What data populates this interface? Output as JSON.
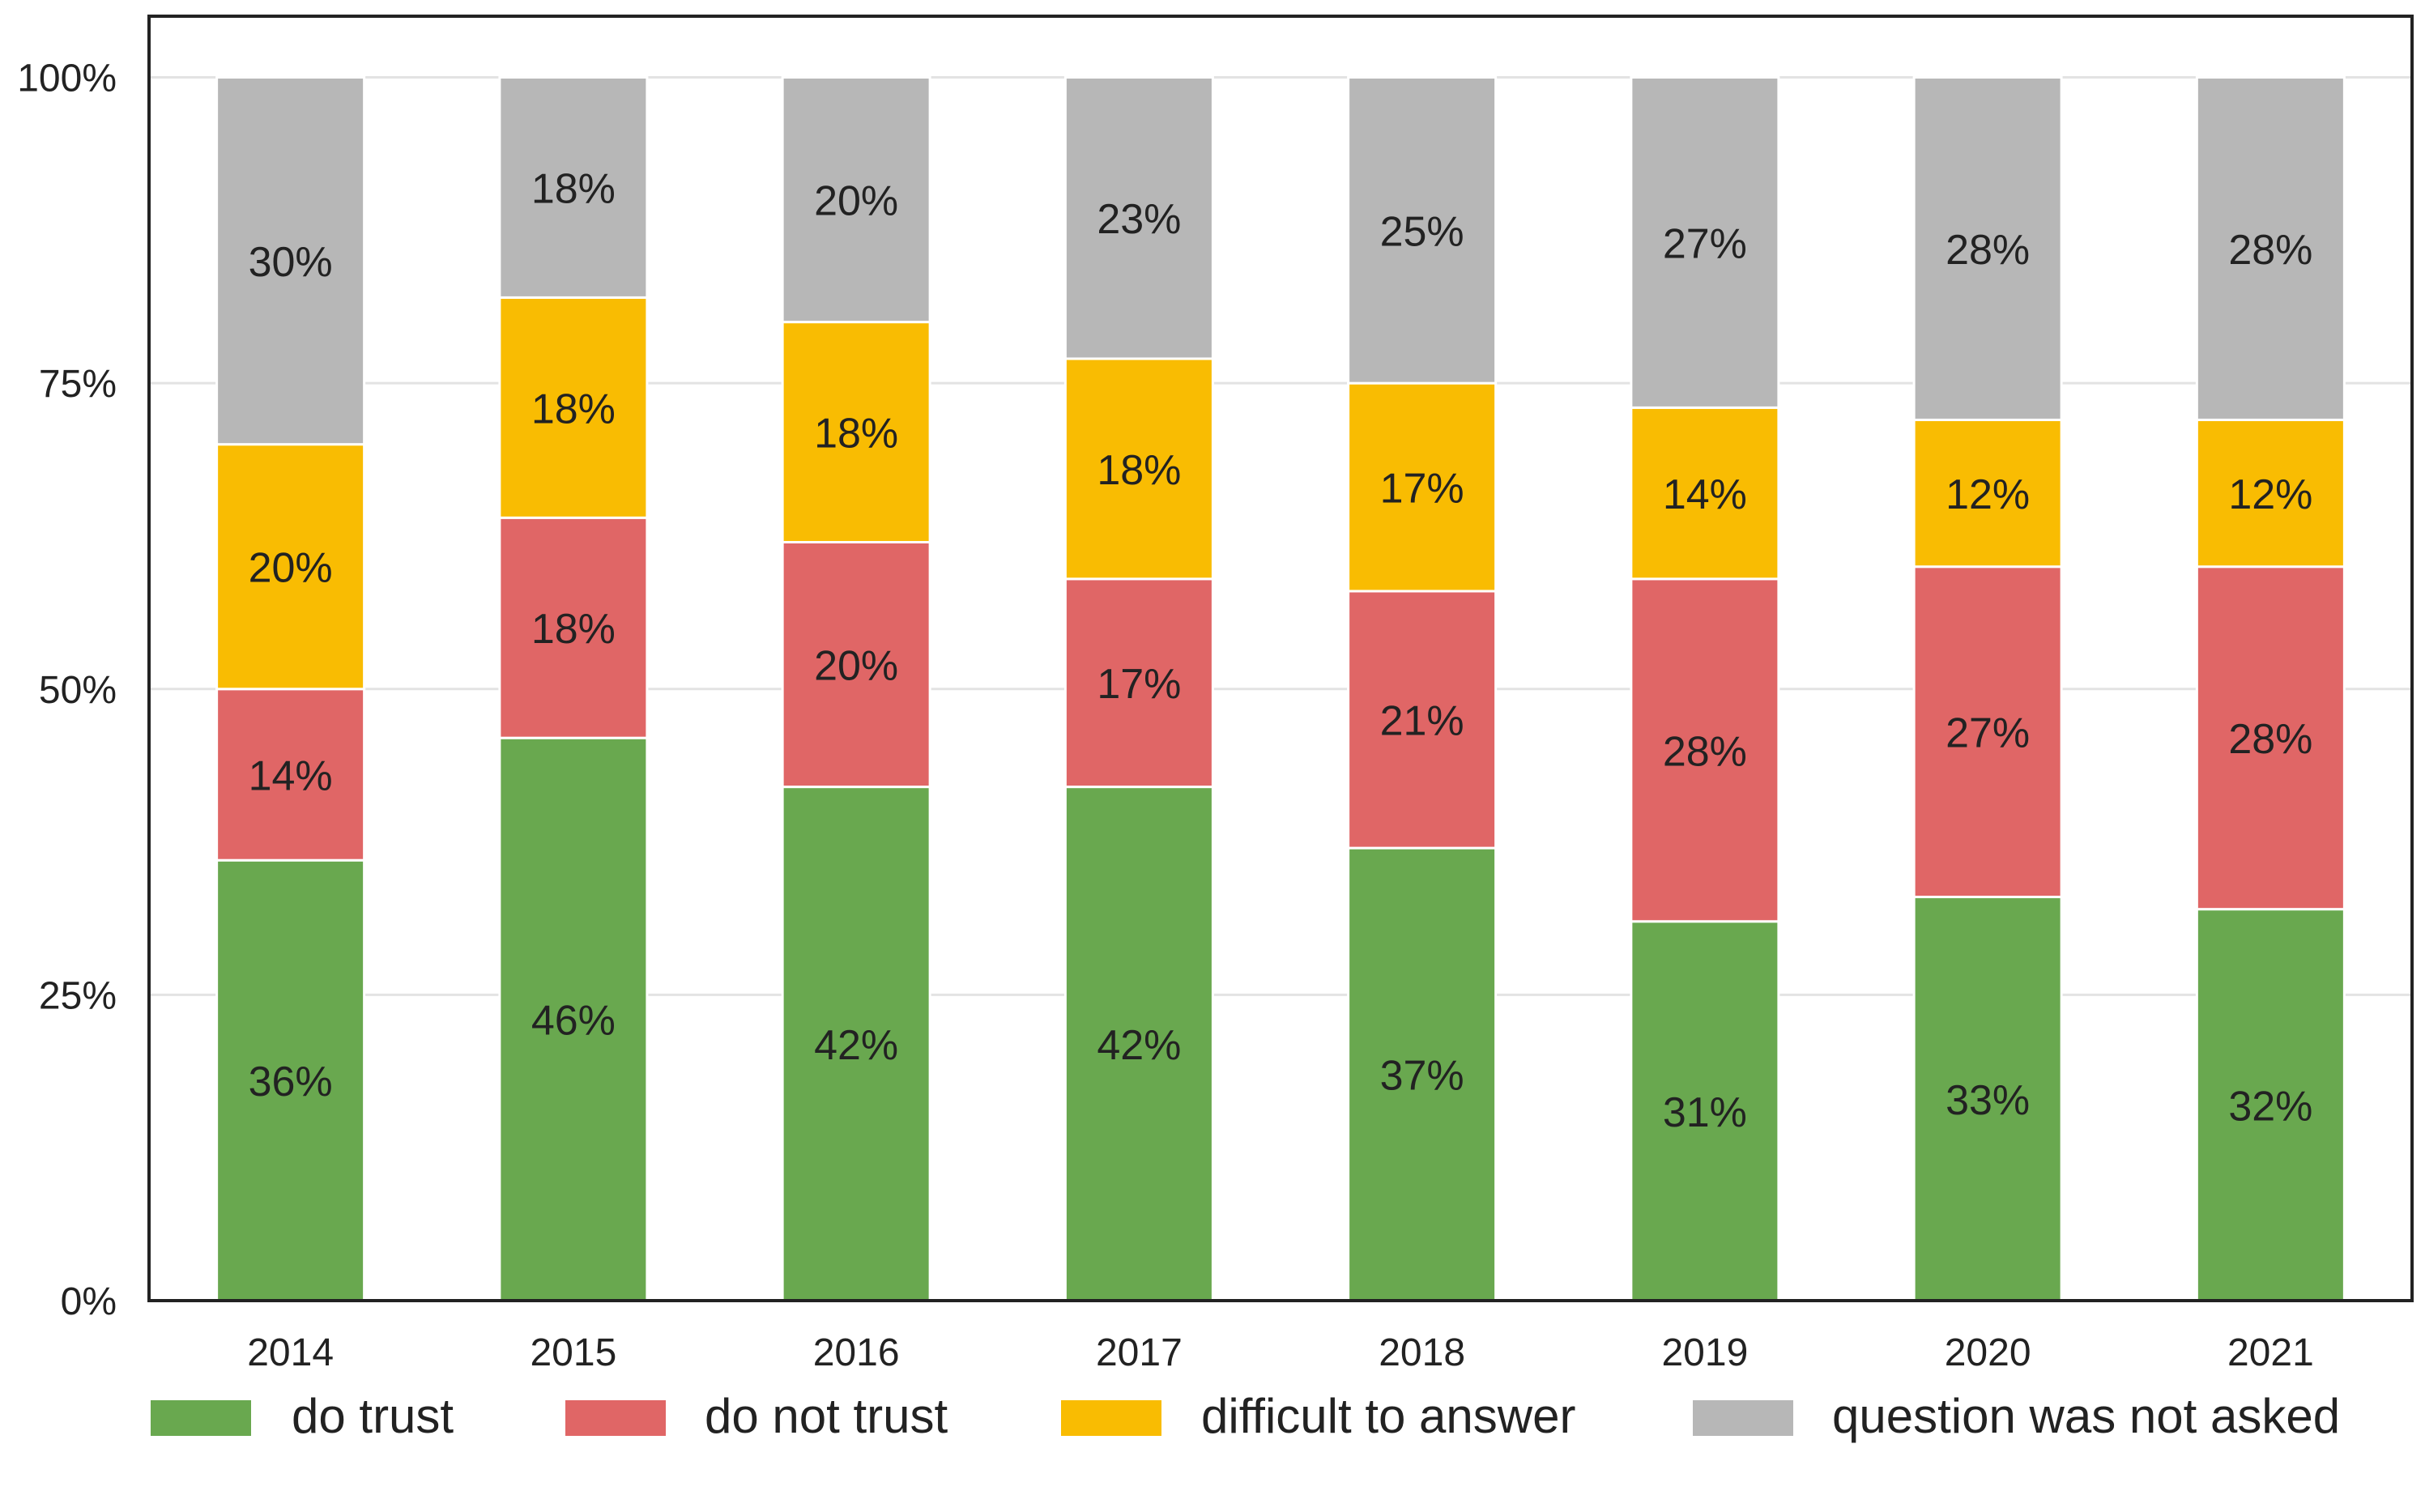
{
  "chart_data": {
    "type": "bar",
    "stacked": true,
    "categories": [
      "2014",
      "2015",
      "2016",
      "2017",
      "2018",
      "2019",
      "2020",
      "2021"
    ],
    "series": [
      {
        "name": "do trust",
        "color": "#69a84f",
        "values": [
          36,
          46,
          42,
          42,
          37,
          31,
          33,
          32
        ]
      },
      {
        "name": "do not trust",
        "color": "#e06666",
        "values": [
          14,
          18,
          20,
          17,
          21,
          28,
          27,
          28
        ]
      },
      {
        "name": "difficult to answer",
        "color": "#f9bc02",
        "values": [
          20,
          18,
          18,
          18,
          17,
          14,
          12,
          12
        ]
      },
      {
        "name": "question was not asked",
        "color": "#b7b7b7",
        "values": [
          30,
          18,
          20,
          23,
          25,
          27,
          28,
          28
        ]
      }
    ],
    "value_suffix": "%",
    "yticks": [
      "0%",
      "25%",
      "50%",
      "75%",
      "100%"
    ],
    "ylim": [
      0,
      105
    ],
    "grid": true,
    "legend_position": "bottom",
    "title": "",
    "xlabel": "",
    "ylabel": ""
  }
}
